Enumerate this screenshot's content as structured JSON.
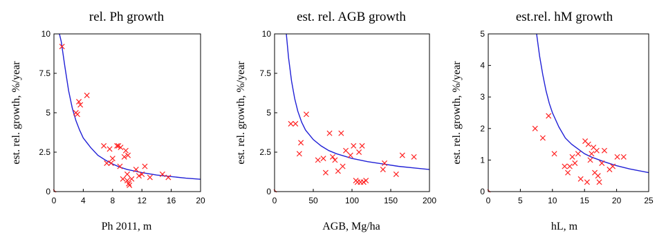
{
  "chart_data": [
    {
      "type": "scatter",
      "title": "rel. Ph growth",
      "xlabel": "Ph 2011, m",
      "ylabel": "est. rel. growth, %/year",
      "xlim": [
        0,
        20
      ],
      "ylim": [
        0,
        10
      ],
      "xticks": [
        0,
        4,
        8,
        12,
        16,
        20
      ],
      "yticks": [
        0,
        2.5,
        5,
        7.5,
        10
      ],
      "xtick_labels": [
        "0",
        "4",
        "8",
        "12",
        "16",
        "20"
      ],
      "ytick_labels": [
        "0",
        "2.5",
        "5",
        "7.5",
        "10"
      ],
      "grid": false,
      "colors": {
        "points": "#ff2020",
        "fit": "#1f1fd6"
      },
      "series": [
        {
          "kind": "points",
          "x": [
            1.1,
            3.0,
            3.2,
            3.4,
            3.6,
            4.5,
            6.8,
            7.2,
            7.6,
            7.8,
            8.0,
            8.6,
            8.8,
            9.0,
            9.1,
            9.4,
            9.6,
            9.8,
            10.0,
            10.0,
            10.1,
            10.2,
            10.3,
            10.6,
            11.2,
            11.6,
            12.0,
            12.4,
            13.1,
            14.8,
            15.6
          ],
          "y": [
            9.2,
            5.0,
            4.9,
            5.7,
            5.5,
            6.1,
            2.9,
            1.8,
            2.7,
            1.8,
            2.1,
            2.9,
            2.9,
            1.6,
            2.8,
            0.8,
            2.2,
            2.6,
            1.1,
            0.7,
            2.3,
            0.5,
            0.4,
            0.8,
            1.4,
            1.0,
            1.1,
            1.6,
            0.9,
            1.1,
            0.9
          ]
        },
        {
          "kind": "fit",
          "x": [
            0.7,
            1,
            1.5,
            2,
            2.5,
            3,
            3.5,
            4,
            5,
            6,
            7,
            8,
            9,
            10,
            12,
            14,
            16,
            18,
            20
          ],
          "y": [
            10.1,
            9.5,
            7.9,
            6.4,
            5.3,
            4.5,
            3.9,
            3.4,
            2.8,
            2.3,
            2.0,
            1.75,
            1.55,
            1.4,
            1.2,
            1.05,
            0.95,
            0.85,
            0.78
          ]
        }
      ]
    },
    {
      "type": "scatter",
      "title": "est. rel. AGB growth",
      "xlabel": "AGB, Mg/ha",
      "ylabel": "est. rel. growth, %/year",
      "xlim": [
        0,
        200
      ],
      "ylim": [
        0,
        10
      ],
      "xticks": [
        0,
        50,
        100,
        150,
        200
      ],
      "yticks": [
        0,
        2.5,
        5,
        7.5,
        10
      ],
      "xtick_labels": [
        "0",
        "50",
        "100",
        "150",
        "200"
      ],
      "ytick_labels": [
        "0",
        "2.5",
        "5",
        "7.5",
        "10"
      ],
      "grid": false,
      "colors": {
        "points": "#ff2020",
        "fit": "#1f1fd6"
      },
      "series": [
        {
          "kind": "points",
          "x": [
            21,
            27,
            32,
            34,
            41,
            56,
            63,
            66,
            71,
            75,
            78,
            82,
            86,
            88,
            92,
            98,
            102,
            105,
            107,
            109,
            111,
            113,
            115,
            118,
            140,
            142,
            157,
            165,
            180
          ],
          "y": [
            4.3,
            4.3,
            2.4,
            3.1,
            4.9,
            2.0,
            2.1,
            1.2,
            3.7,
            2.2,
            2.0,
            1.3,
            3.7,
            1.6,
            2.6,
            2.3,
            2.9,
            0.7,
            0.6,
            2.5,
            0.6,
            2.9,
            0.6,
            0.7,
            1.4,
            1.8,
            1.1,
            2.3,
            2.2
          ]
        },
        {
          "kind": "fit",
          "x": [
            15,
            18,
            22,
            26,
            30,
            35,
            40,
            50,
            60,
            70,
            80,
            90,
            100,
            120,
            140,
            160,
            180,
            200
          ],
          "y": [
            10.1,
            8.5,
            7.0,
            5.9,
            5.1,
            4.4,
            3.9,
            3.3,
            2.9,
            2.6,
            2.4,
            2.25,
            2.1,
            1.9,
            1.75,
            1.6,
            1.5,
            1.4
          ]
        }
      ]
    },
    {
      "type": "scatter",
      "title": "est.rel. hM growth",
      "xlabel": "hL, m",
      "ylabel": "est. rel. growth, %/year",
      "xlim": [
        0,
        25
      ],
      "ylim": [
        0,
        5
      ],
      "xticks": [
        0,
        5,
        10,
        15,
        20,
        25
      ],
      "yticks": [
        0,
        1,
        2,
        3,
        4,
        5
      ],
      "xtick_labels": [
        "0",
        "5",
        "10",
        "15",
        "20",
        "25"
      ],
      "ytick_labels": [
        "0",
        "1",
        "2",
        "3",
        "4",
        "5"
      ],
      "grid": false,
      "colors": {
        "points": "#ff2020",
        "fit": "#1f1fd6"
      },
      "series": [
        {
          "kind": "points",
          "x": [
            7.3,
            8.5,
            9.4,
            10.3,
            11.9,
            12.4,
            12.7,
            13.1,
            13.5,
            14.0,
            14.4,
            15.1,
            15.4,
            15.6,
            15.9,
            16.1,
            16.4,
            16.6,
            16.9,
            17.1,
            17.3,
            17.7,
            18.1,
            18.9,
            19.4,
            20.1,
            21.1
          ],
          "y": [
            2.0,
            1.7,
            2.4,
            1.2,
            0.8,
            0.6,
            0.8,
            1.1,
            0.9,
            1.2,
            0.4,
            1.6,
            0.3,
            1.5,
            1.0,
            1.2,
            1.4,
            0.6,
            1.3,
            0.5,
            0.3,
            0.9,
            1.3,
            0.7,
            0.8,
            1.1,
            1.1
          ]
        },
        {
          "kind": "fit",
          "x": [
            7.5,
            8,
            8.5,
            9,
            9.5,
            10,
            11,
            12,
            13,
            14,
            15,
            16,
            18,
            20,
            22,
            25
          ],
          "y": [
            5.05,
            4.3,
            3.7,
            3.2,
            2.8,
            2.5,
            2.05,
            1.7,
            1.5,
            1.35,
            1.2,
            1.1,
            0.95,
            0.82,
            0.72,
            0.6
          ]
        }
      ]
    }
  ]
}
